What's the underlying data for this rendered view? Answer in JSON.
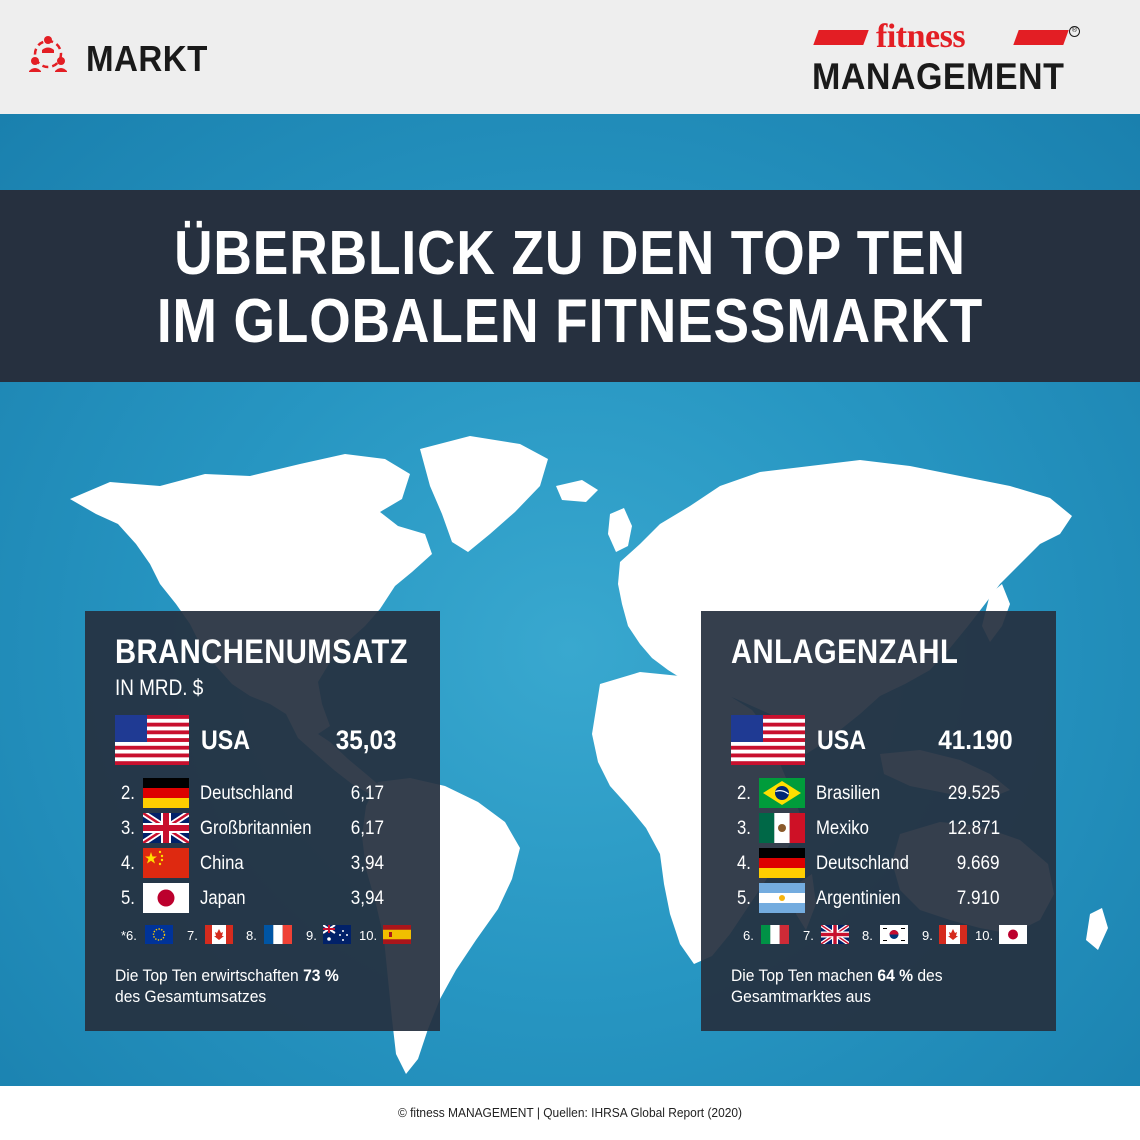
{
  "header": {
    "section_label": "MARKT",
    "section_icon": "people-network-icon",
    "logo": {
      "word1": "fitness",
      "word2": "MANAGEMENT",
      "reg_mark": "®"
    }
  },
  "title": {
    "line1": "ÜBERBLICK ZU DEN TOP TEN",
    "line2": "IM GLOBALEN FITNESSMARKT"
  },
  "left_panel": {
    "title": "BRANCHENUMSATZ",
    "subtitle": "IN MRD. $",
    "top": {
      "country": "USA",
      "value": "35,03",
      "flag": "usa-flag"
    },
    "rows": [
      {
        "rank": "2.",
        "country": "Deutschland",
        "value": "6,17",
        "flag": "germany-flag"
      },
      {
        "rank": "3.",
        "country": "Großbritannien",
        "value": "6,17",
        "flag": "uk-flag"
      },
      {
        "rank": "4.",
        "country": "China",
        "value": "3,94",
        "flag": "china-flag"
      },
      {
        "rank": "5.",
        "country": "Japan",
        "value": "3,94",
        "flag": "japan-flag"
      }
    ],
    "minis": [
      {
        "rank": "*6.",
        "flag": "eu-flag"
      },
      {
        "rank": "7.",
        "flag": "canada-flag"
      },
      {
        "rank": "8.",
        "flag": "france-flag"
      },
      {
        "rank": "9.",
        "flag": "australia-flag"
      },
      {
        "rank": "10.",
        "flag": "spain-flag"
      }
    ],
    "footer_pre": "Die Top Ten erwirtschaften ",
    "footer_pct": "73 %",
    "footer_post": "des Gesamtumsatzes"
  },
  "right_panel": {
    "title": "ANLAGENZAHL",
    "top": {
      "country": "USA",
      "value": "41.190",
      "flag": "usa-flag"
    },
    "rows": [
      {
        "rank": "2.",
        "country": "Brasilien",
        "value": "29.525",
        "flag": "brazil-flag"
      },
      {
        "rank": "3.",
        "country": "Mexiko",
        "value": "12.871",
        "flag": "mexico-flag"
      },
      {
        "rank": "4.",
        "country": "Deutschland",
        "value": "9.669",
        "flag": "germany-flag"
      },
      {
        "rank": "5.",
        "country": "Argentinien",
        "value": "7.910",
        "flag": "argentina-flag"
      }
    ],
    "minis": [
      {
        "rank": "6.",
        "flag": "italy-flag"
      },
      {
        "rank": "7.",
        "flag": "uk-flag"
      },
      {
        "rank": "8.",
        "flag": "south-korea-flag"
      },
      {
        "rank": "9.",
        "flag": "canada-flag"
      },
      {
        "rank": "10.",
        "flag": "japan-flag"
      }
    ],
    "footer_pre": "Die Top Ten machen ",
    "footer_pct": "64 %",
    "footer_mid": " des",
    "footer_post": "Gesamtmarktes aus"
  },
  "footer": {
    "credit": "© fitness MANAGEMENT  |  Quellen: IHRSA Global Report (2020)"
  },
  "colors": {
    "accent_red": "#e31e24",
    "panel_dark": "#26303f",
    "ocean_blue": "#2796c2"
  }
}
